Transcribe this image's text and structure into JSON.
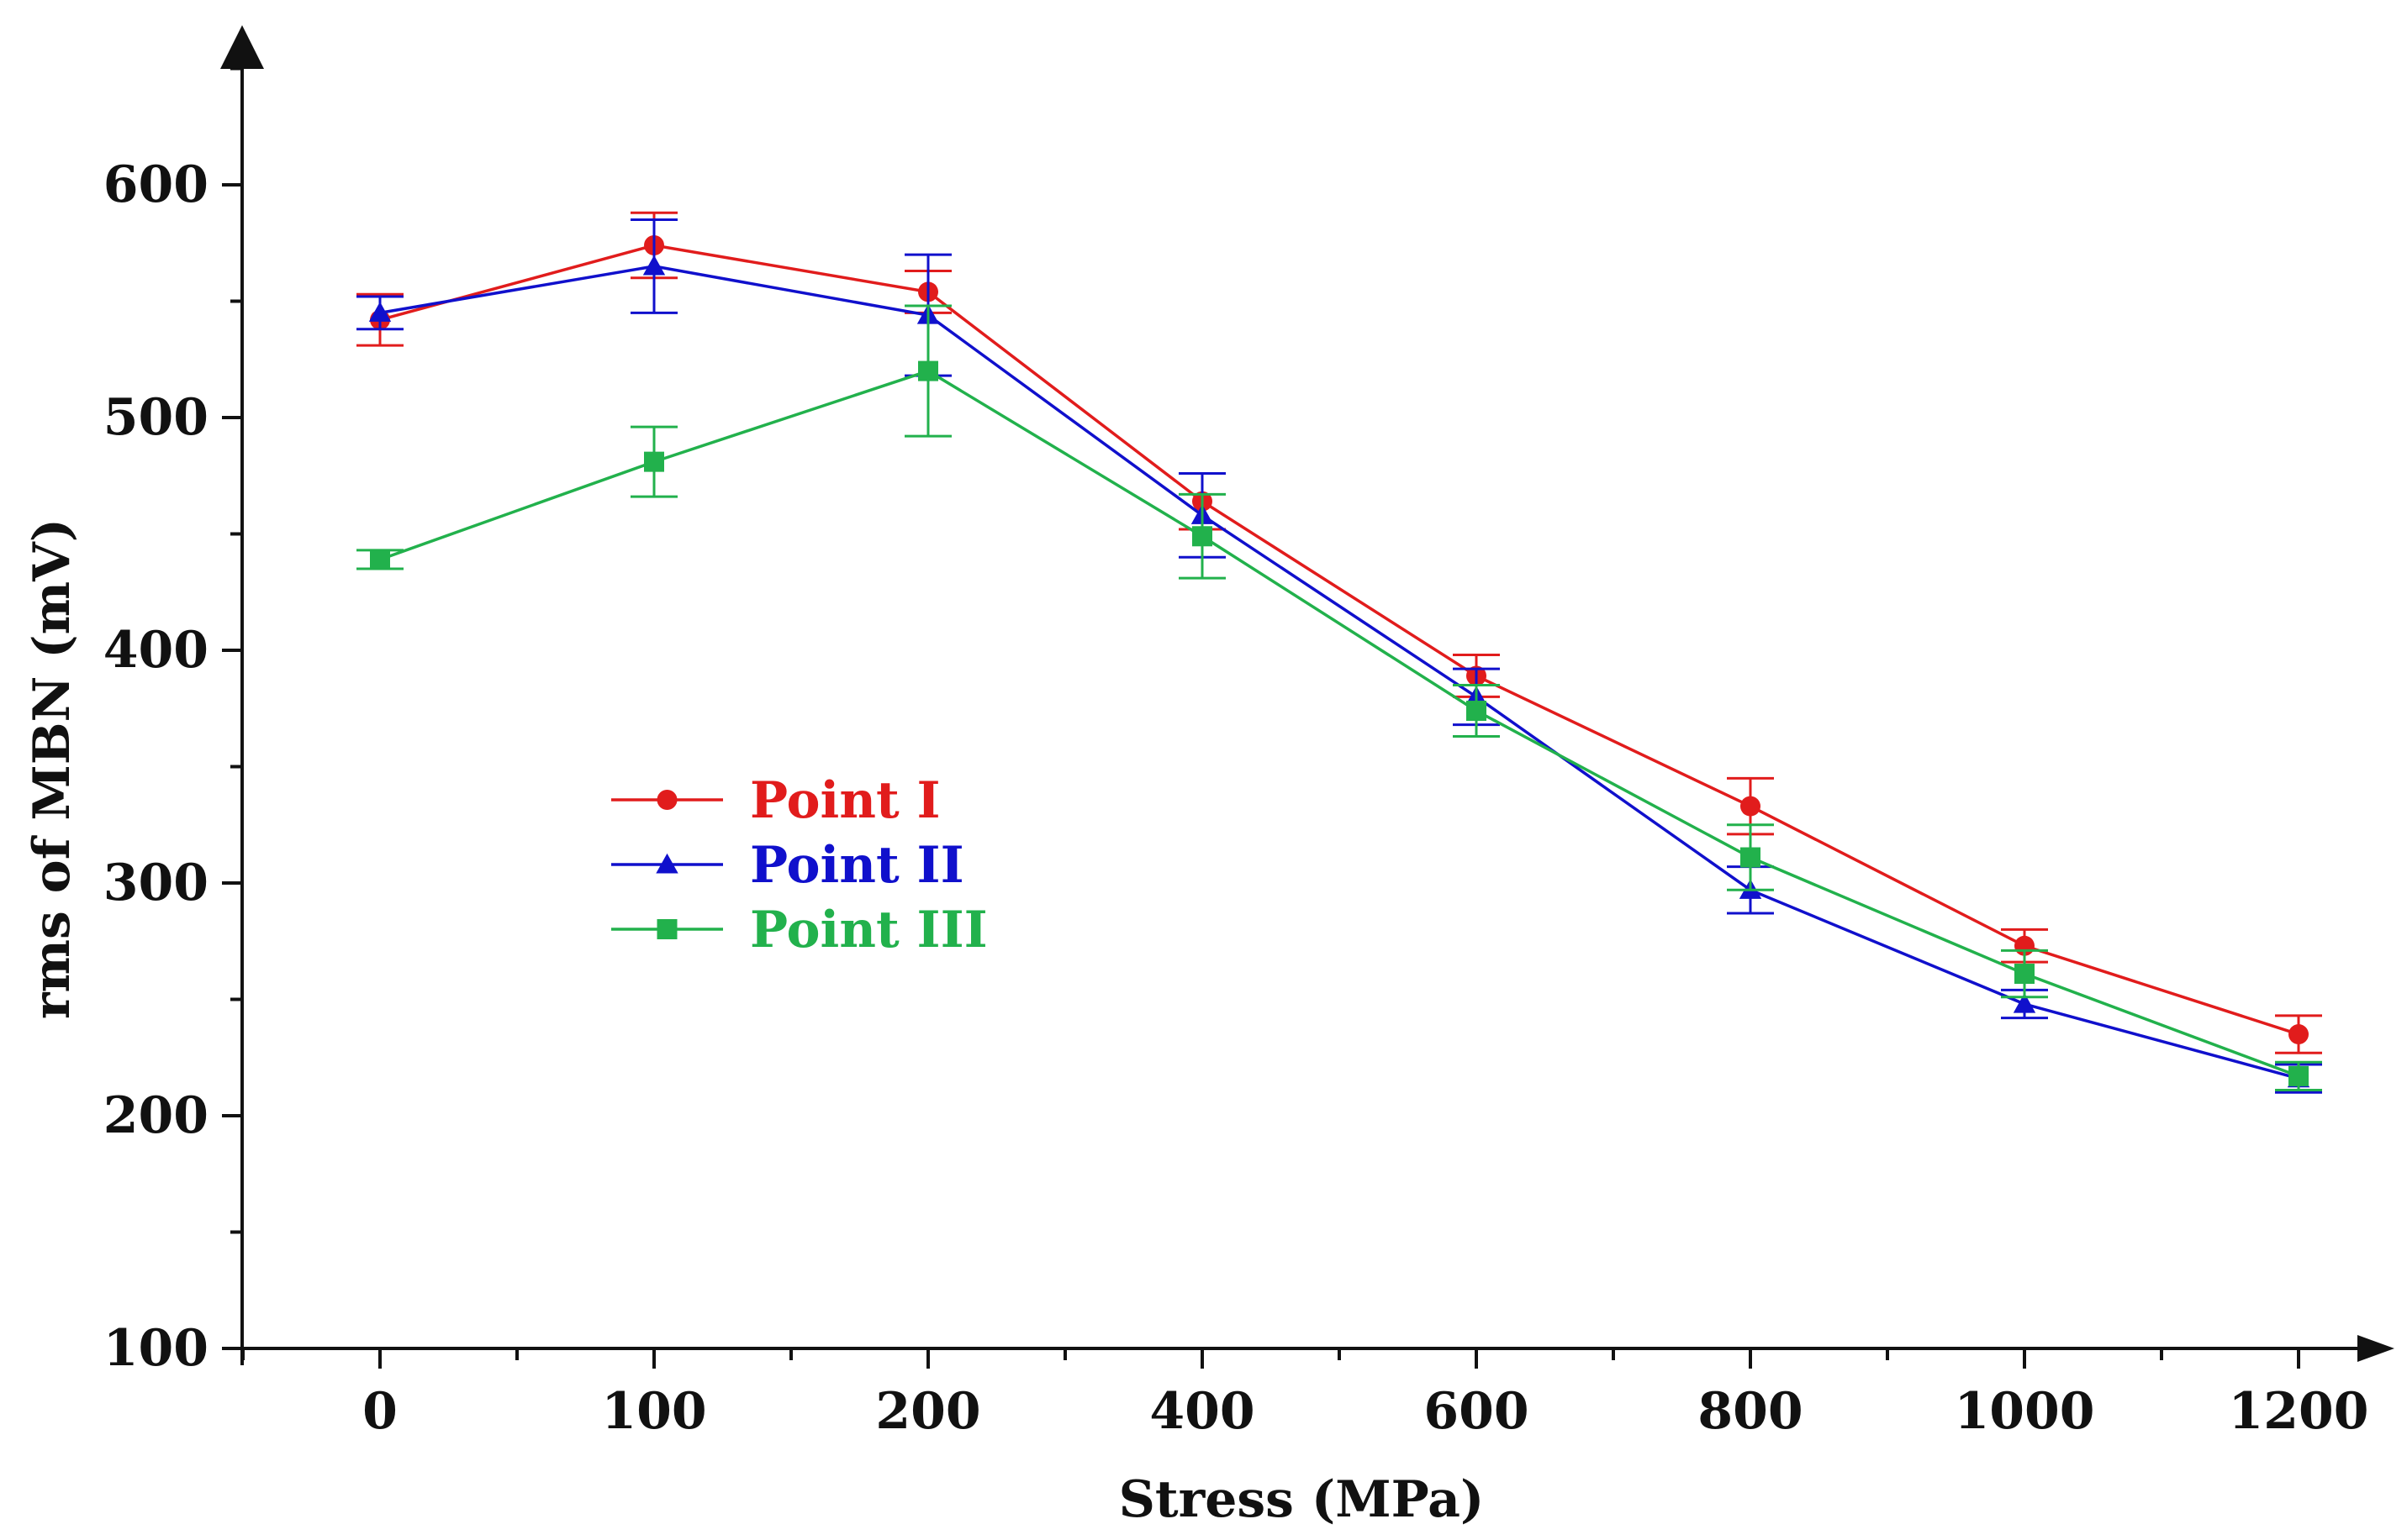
{
  "chart_data": {
    "type": "line",
    "xlabel": "Stress (MPa)",
    "ylabel": "rms of MBN (mV)",
    "categories": [
      "0",
      "100",
      "200",
      "400",
      "600",
      "800",
      "1000",
      "1200"
    ],
    "ylim": [
      100,
      650
    ],
    "yticks": [
      100,
      200,
      300,
      400,
      500,
      600
    ],
    "grid": false,
    "legend_position": "center-left",
    "series": [
      {
        "name": "Point I",
        "color": "#e11c1c",
        "marker": "circle",
        "values": [
          542,
          574,
          554,
          464,
          389,
          333,
          273,
          235
        ],
        "errors": [
          11,
          14,
          9,
          12,
          9,
          12,
          7,
          8
        ]
      },
      {
        "name": "Point II",
        "color": "#1010cc",
        "marker": "triangle",
        "values": [
          545,
          565,
          544,
          458,
          380,
          297,
          248,
          216
        ],
        "errors": [
          7,
          20,
          26,
          18,
          12,
          10,
          6,
          6
        ]
      },
      {
        "name": "Point III",
        "color": "#22b14c",
        "marker": "square",
        "values": [
          439,
          481,
          520,
          449,
          374,
          311,
          261,
          217
        ],
        "errors": [
          4,
          15,
          28,
          18,
          11,
          14,
          10,
          6
        ]
      }
    ]
  }
}
